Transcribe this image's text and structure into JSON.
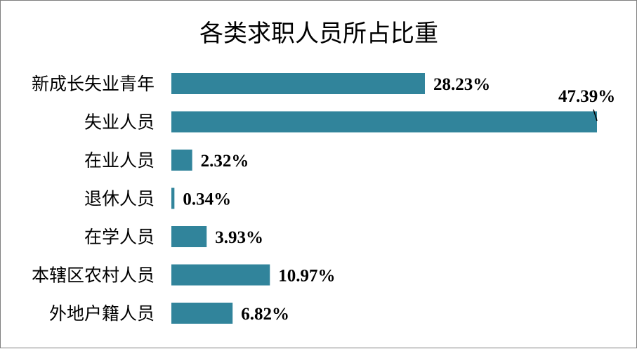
{
  "chart_data": {
    "type": "bar",
    "orientation": "horizontal",
    "title": "各类求职人员所占比重",
    "categories": [
      "新成长失业青年",
      "失业人员",
      "在业人员",
      "退休人员",
      "在学人员",
      "本辖区农村人员",
      "外地户籍人员"
    ],
    "values": [
      28.23,
      47.39,
      2.32,
      0.34,
      3.93,
      10.97,
      6.82
    ],
    "data_labels": [
      "28.23%",
      "47.39%",
      "2.32%",
      "0.34%",
      "3.93%",
      "10.97%",
      "6.82%"
    ],
    "xlim": [
      0,
      47.39
    ],
    "grid": false,
    "legend": "none",
    "bar_color": "#31849b"
  }
}
